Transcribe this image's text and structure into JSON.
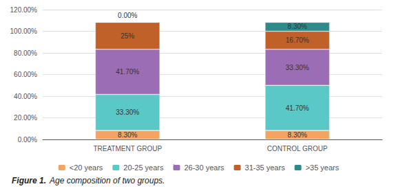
{
  "chart_data": {
    "type": "bar",
    "title": "Figure 1.",
    "subtitle": "Age composition of two groups.",
    "categories": [
      "TREATMENT GROUP",
      "CONTROL GROUP"
    ],
    "series": [
      {
        "name": "<20 years",
        "color": "#f4a460",
        "values": [
          8.3,
          8.3
        ],
        "value_labels": [
          "8.30%",
          "8.30%"
        ]
      },
      {
        "name": "20-25 years",
        "color": "#5bc8c8",
        "values": [
          33.3,
          41.7
        ],
        "value_labels": [
          "33.30%",
          "41.70%"
        ]
      },
      {
        "name": "26-30 years",
        "color": "#9b6db5",
        "values": [
          41.7,
          33.3
        ],
        "value_labels": [
          "41.70%",
          "33.30%"
        ]
      },
      {
        "name": "31-35 years",
        "color": "#c0612a",
        "values": [
          25.0,
          16.7
        ],
        "value_labels": [
          "25%",
          "16.70%"
        ]
      },
      {
        "name": ">35 years",
        "color": "#2e8b8b",
        "values": [
          0.0,
          8.3
        ],
        "value_labels": [
          "0.00%",
          "8.30%"
        ]
      }
    ],
    "stacked": true,
    "data_labels": true,
    "ylim": [
      0,
      120
    ],
    "yticks": [
      {
        "value": 0,
        "label": "0.00%"
      },
      {
        "value": 20,
        "label": "20.00%"
      },
      {
        "value": 40,
        "label": "40.00%"
      },
      {
        "value": 60,
        "label": "60.00%"
      },
      {
        "value": 80,
        "label": "80.00%"
      },
      {
        "value": 100,
        "label": "100.00%"
      },
      {
        "value": 120,
        "label": "120.00%"
      }
    ],
    "grid": true,
    "legend": "bottom"
  }
}
